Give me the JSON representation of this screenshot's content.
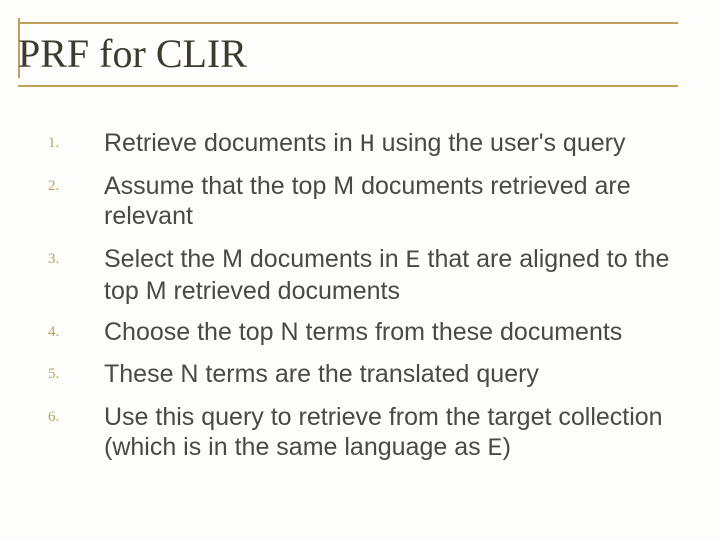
{
  "slide": {
    "title": "PRF for CLIR",
    "title_color": "#3d3b2f",
    "title_fontsize": 40,
    "rule_color": "#bfa15a",
    "background": "#fdfdfb",
    "body_fontsize": 25,
    "body_color": "#4a4a44",
    "number_fontsize": 15,
    "number_color": "#bfa15a",
    "items": [
      {
        "n": "1.",
        "pre": "Retrieve documents in ",
        "mono": "H",
        "post": " using the user's query"
      },
      {
        "n": "2.",
        "pre": "Assume that the top M documents retrieved are relevant",
        "mono": "",
        "post": ""
      },
      {
        "n": "3.",
        "pre": "Select the M documents in ",
        "mono": "E",
        "post": " that are aligned to the top M retrieved documents"
      },
      {
        "n": "4.",
        "pre": "Choose the top N terms from these documents",
        "mono": "",
        "post": ""
      },
      {
        "n": "5.",
        "pre": "These N terms are the translated query",
        "mono": "",
        "post": ""
      },
      {
        "n": "6.",
        "pre": "Use this query to retrieve from the target collection (which is in the same language as ",
        "mono": "E",
        "post": ")"
      }
    ]
  }
}
